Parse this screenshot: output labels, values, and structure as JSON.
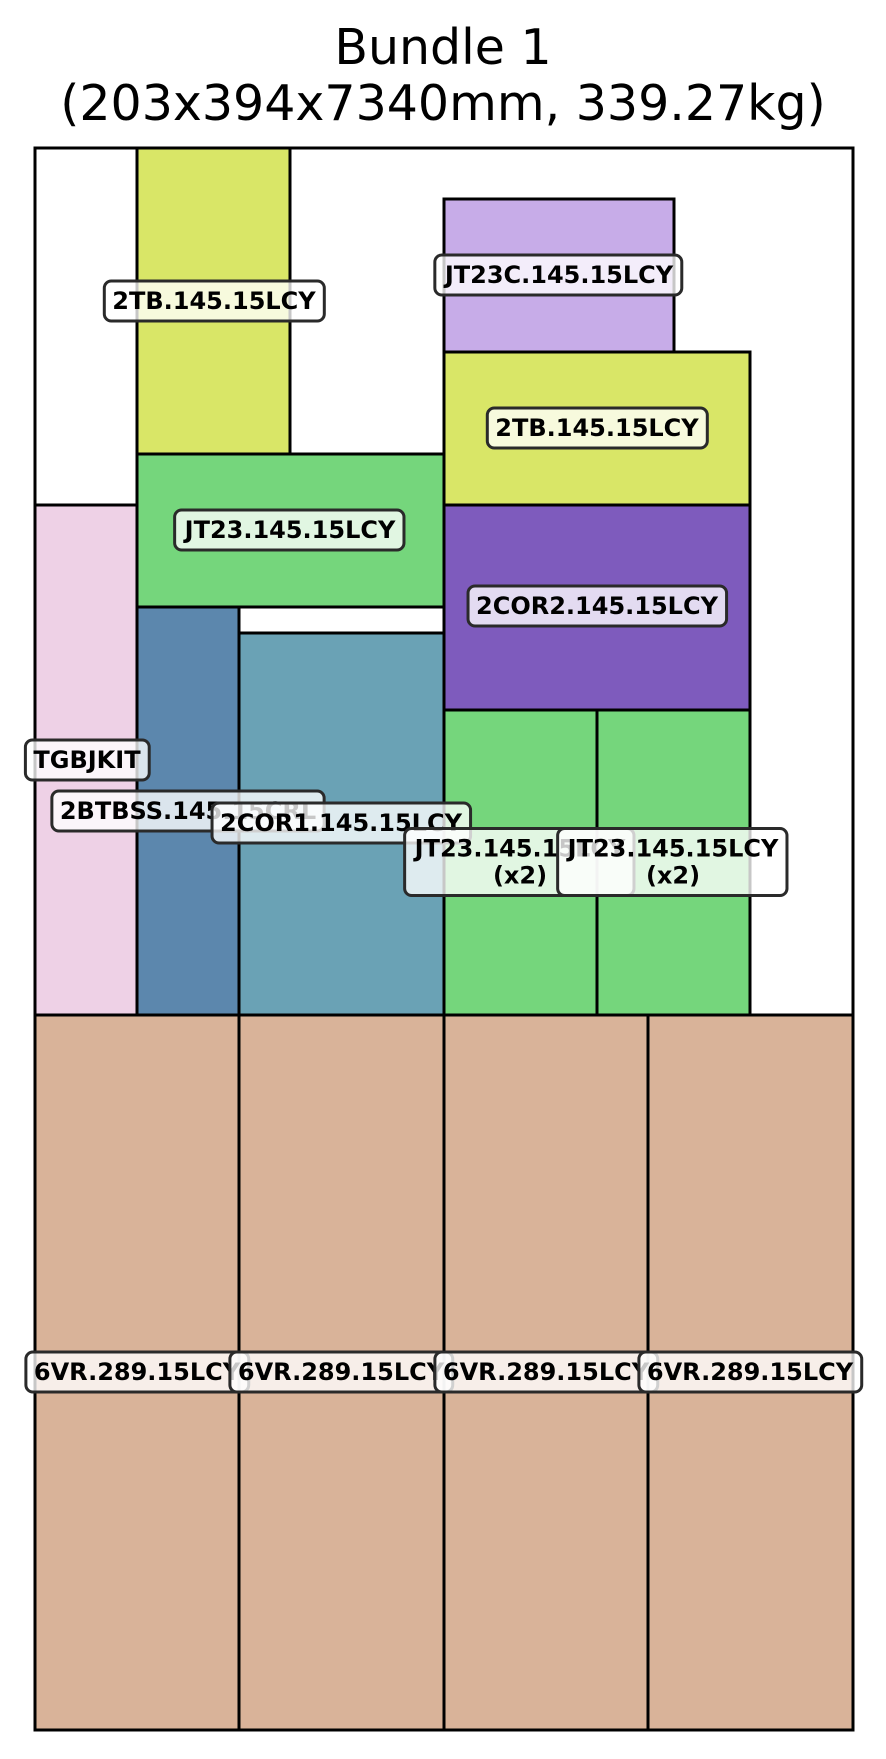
{
  "title": {
    "line1": "Bundle 1",
    "line2": "(203x394x7340mm, 339.27kg)"
  },
  "items": [
    {
      "label": "2TB.145.15LCY",
      "sub": "",
      "color": "#d9e667"
    },
    {
      "label": "JT23C.145.15LCY",
      "sub": "",
      "color": "#c7ace8"
    },
    {
      "label": "2TB.145.15LCY",
      "sub": "",
      "color": "#d9e667"
    },
    {
      "label": "JT23.145.15LCY",
      "sub": "",
      "color": "#75d67c"
    },
    {
      "label": "2COR2.145.15LCY",
      "sub": "",
      "color": "#7e5bbd"
    },
    {
      "label": "TGBJKIT",
      "sub": "",
      "color": "#eed1e6"
    },
    {
      "label": "2BTBSS.145.15CRL",
      "sub": "",
      "color": "#5c87ad"
    },
    {
      "label": "2COR1.145.15LCY",
      "sub": "",
      "color": "#6aa2b5"
    },
    {
      "label": "JT23.145.15LCY",
      "sub": "(x2)",
      "color": "#75d67c"
    },
    {
      "label": "JT23.145.15LCY",
      "sub": "(x2)",
      "color": "#75d67c"
    },
    {
      "label": "6VR.289.15LCY",
      "sub": "",
      "color": "#d9b399"
    },
    {
      "label": "6VR.289.15LCY",
      "sub": "",
      "color": "#d9b399"
    },
    {
      "label": "6VR.289.15LCY",
      "sub": "",
      "color": "#d9b399"
    },
    {
      "label": "6VR.289.15LCY",
      "sub": "",
      "color": "#d9b399"
    }
  ]
}
